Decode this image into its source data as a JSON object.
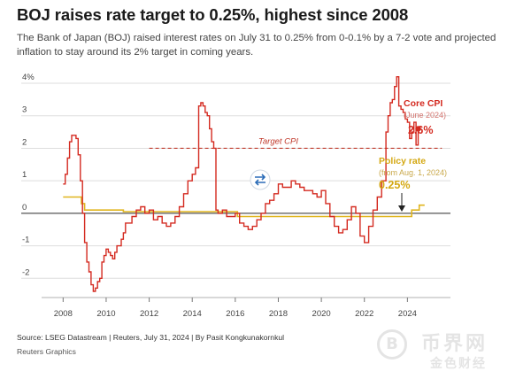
{
  "title": "BOJ raises rate target to 0.25%, highest since 2008",
  "subtitle": "The Bank of Japan (BOJ) raised interest rates on July 31 to 0.25% from 0-0.1% by a 7-2 vote and projected inflation to stay around its 2% target in coming years.",
  "source": "Source: LSEG Datastream | Reuters, July 31, 2024 | By Pasit Kongkunakornkul",
  "credit": "Reuters Graphics",
  "watermark": {
    "big": "币界网",
    "small": "金色财经",
    "mark": "B"
  },
  "colors": {
    "cpi": "#d42a20",
    "policy": "#e0b51e",
    "axis": "#555555",
    "grid": "#dddddd",
    "target": "#c0392b",
    "icon": "#2b6cb8"
  },
  "chart_data": {
    "type": "line",
    "title": "BOJ raises rate target to 0.25%, highest since 2008",
    "xlabel": "",
    "ylabel": "%",
    "xlim": [
      2007.0,
      2026.0
    ],
    "ylim": [
      -2.7,
      4.3
    ],
    "ytick_values": [
      -2,
      -1,
      0,
      1,
      2,
      3,
      4
    ],
    "ytick_labels": [
      "-2",
      "-1",
      "0",
      "1",
      "2",
      "3",
      "4%"
    ],
    "xtick_values": [
      2008,
      2010,
      2012,
      2014,
      2016,
      2018,
      2020,
      2022,
      2024
    ],
    "xtick_labels": [
      "2008",
      "2010",
      "2012",
      "2014",
      "2016",
      "2018",
      "2020",
      "2022",
      "2024"
    ],
    "target": {
      "value": 2,
      "label": "Target CPI",
      "x_start": 2012.0,
      "x_end": 2025.6
    },
    "series": [
      {
        "name": "Core CPI",
        "date_label": "(June 2024)",
        "last_label": "2.6%",
        "style": "step",
        "x": [
          2008.0,
          2008.1,
          2008.2,
          2008.3,
          2008.4,
          2008.5,
          2008.6,
          2008.7,
          2008.8,
          2008.9,
          2009.0,
          2009.1,
          2009.2,
          2009.3,
          2009.4,
          2009.5,
          2009.6,
          2009.7,
          2009.8,
          2009.9,
          2010.0,
          2010.1,
          2010.2,
          2010.3,
          2010.4,
          2010.5,
          2010.6,
          2010.7,
          2010.8,
          2010.9,
          2011.0,
          2011.2,
          2011.4,
          2011.6,
          2011.8,
          2012.0,
          2012.2,
          2012.4,
          2012.6,
          2012.8,
          2013.0,
          2013.2,
          2013.4,
          2013.6,
          2013.8,
          2014.0,
          2014.15,
          2014.3,
          2014.4,
          2014.5,
          2014.6,
          2014.7,
          2014.8,
          2014.9,
          2015.0,
          2015.1,
          2015.2,
          2015.3,
          2015.4,
          2015.6,
          2015.8,
          2016.0,
          2016.2,
          2016.4,
          2016.6,
          2016.8,
          2017.0,
          2017.2,
          2017.4,
          2017.6,
          2017.8,
          2018.0,
          2018.2,
          2018.4,
          2018.6,
          2018.8,
          2019.0,
          2019.2,
          2019.4,
          2019.6,
          2019.8,
          2020.0,
          2020.2,
          2020.4,
          2020.6,
          2020.8,
          2021.0,
          2021.2,
          2021.4,
          2021.6,
          2021.8,
          2022.0,
          2022.2,
          2022.4,
          2022.6,
          2022.8,
          2023.0,
          2023.1,
          2023.2,
          2023.3,
          2023.4,
          2023.5,
          2023.6,
          2023.7,
          2023.8,
          2023.9,
          2024.0,
          2024.1,
          2024.2,
          2024.3,
          2024.4,
          2024.5
        ],
        "y": [
          0.9,
          1.2,
          1.7,
          2.2,
          2.4,
          2.4,
          2.3,
          1.8,
          1.0,
          0.0,
          -0.9,
          -1.5,
          -1.8,
          -2.2,
          -2.4,
          -2.3,
          -2.1,
          -2.0,
          -1.5,
          -1.3,
          -1.1,
          -1.2,
          -1.3,
          -1.4,
          -1.2,
          -1.0,
          -1.0,
          -0.8,
          -0.6,
          -0.3,
          -0.3,
          -0.1,
          0.1,
          0.2,
          0.0,
          0.1,
          -0.2,
          -0.1,
          -0.3,
          -0.4,
          -0.3,
          -0.1,
          0.2,
          0.6,
          1.0,
          1.2,
          1.4,
          3.3,
          3.4,
          3.3,
          3.1,
          3.0,
          2.6,
          2.2,
          2.0,
          0.1,
          0.0,
          0.0,
          0.1,
          -0.1,
          -0.1,
          0.0,
          -0.3,
          -0.4,
          -0.5,
          -0.4,
          -0.2,
          0.0,
          0.3,
          0.4,
          0.6,
          0.9,
          0.8,
          0.8,
          1.0,
          0.9,
          0.8,
          0.7,
          0.7,
          0.6,
          0.5,
          0.7,
          0.3,
          -0.1,
          -0.4,
          -0.6,
          -0.5,
          -0.2,
          0.2,
          0.0,
          -0.7,
          -0.9,
          -0.4,
          0.1,
          0.5,
          1.0,
          2.5,
          3.0,
          3.4,
          3.5,
          3.9,
          4.2,
          3.3,
          3.2,
          3.1,
          2.9,
          2.8,
          2.3,
          2.5,
          2.8,
          2.1,
          2.6
        ]
      },
      {
        "name": "Policy rate",
        "date_label": "(from Aug. 1, 2024)",
        "last_label": "0.25%",
        "style": "step",
        "x": [
          2008.0,
          2008.85,
          2009.0,
          2010.8,
          2016.1,
          2024.2,
          2024.55,
          2024.8
        ],
        "y": [
          0.5,
          0.3,
          0.1,
          0.05,
          -0.1,
          0.1,
          0.25,
          0.25
        ]
      }
    ]
  }
}
